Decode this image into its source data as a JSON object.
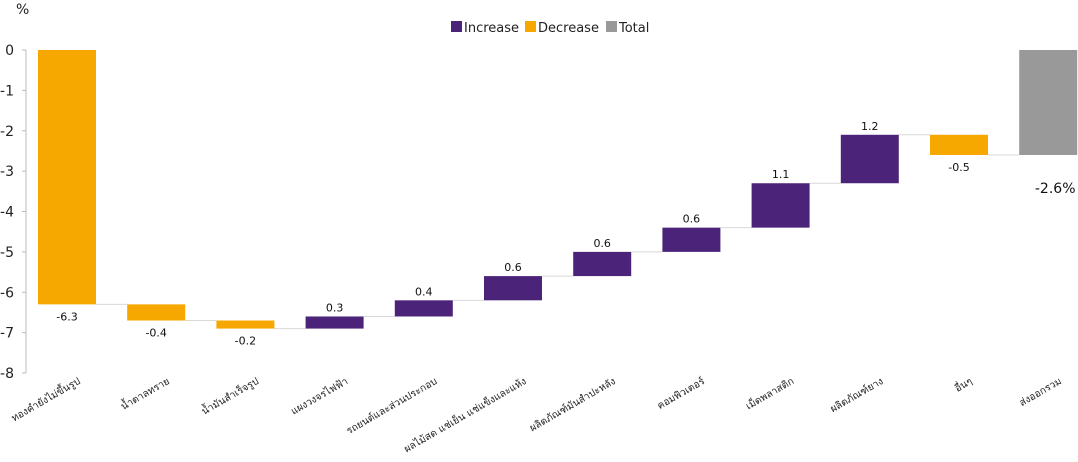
{
  "chart_data": {
    "type": "bar",
    "subtype": "waterfall",
    "unit_label": "%",
    "ylim": [
      -8,
      0
    ],
    "yticks": [
      "0",
      "-1",
      "-2",
      "-3",
      "-4",
      "-5",
      "-6",
      "-7",
      "-8"
    ],
    "grid": false,
    "legend_position": "top-center",
    "legend": [
      {
        "name": "Increase",
        "color": "#4B2479"
      },
      {
        "name": "Decrease",
        "color": "#F7A800"
      },
      {
        "name": "Total",
        "color": "#999999"
      }
    ],
    "categories": [
      "ทองคำยังไม่ขึ้นรูป",
      "น้ำตาลทราย",
      "น้ำมันสำเร็จรูป",
      "แผงวงจรไฟฟ้า",
      "รถยนต์และส่วนประกอบ",
      "ผลไม้สด แช่เย็น แช่แข็งและแห้ง",
      "ผลิตภัณฑ์มันสำปะหลัง",
      "คอมพิวเตอร์",
      "เม็ดพลาสติก",
      "ผลิตภัณฑ์ยาง",
      "อื่นๆ",
      "ส่งออกรวม"
    ],
    "values": [
      -6.3,
      -0.4,
      -0.2,
      0.3,
      0.4,
      0.6,
      0.6,
      0.6,
      1.1,
      1.2,
      -0.5,
      -2.6
    ],
    "value_labels": [
      "-6.3",
      "-0.4",
      "-0.2",
      "0.3",
      "0.4",
      "0.6",
      "0.6",
      "0.6",
      "1.1",
      "1.2",
      "-0.5",
      "-2.6%"
    ],
    "kinds": [
      "decrease",
      "decrease",
      "decrease",
      "increase",
      "increase",
      "increase",
      "increase",
      "increase",
      "increase",
      "increase",
      "decrease",
      "total"
    ]
  }
}
